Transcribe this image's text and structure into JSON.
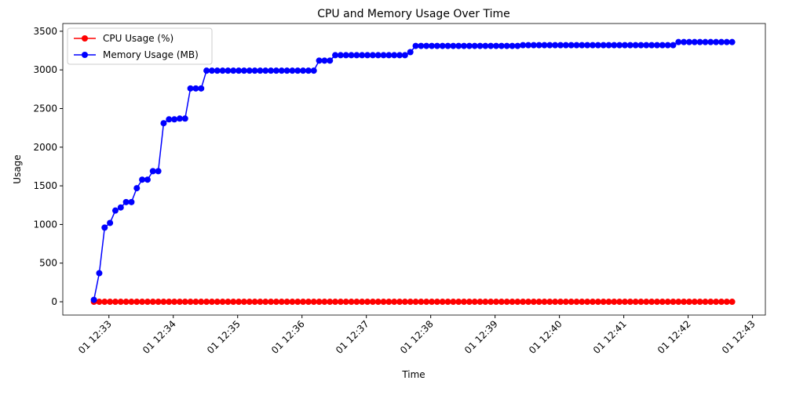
{
  "chart_data": {
    "type": "line",
    "title": "CPU and Memory Usage Over Time",
    "xlabel": "Time",
    "ylabel": "Usage",
    "x": [
      "01 12:32:46",
      "01 12:32:51",
      "01 12:32:56",
      "01 12:33:01",
      "01 12:33:06",
      "01 12:33:11",
      "01 12:33:16",
      "01 12:33:21",
      "01 12:33:26",
      "01 12:33:31",
      "01 12:33:36",
      "01 12:33:41",
      "01 12:33:46",
      "01 12:33:51",
      "01 12:33:56",
      "01 12:34:01",
      "01 12:34:06",
      "01 12:34:11",
      "01 12:34:16",
      "01 12:34:21",
      "01 12:34:26",
      "01 12:34:31",
      "01 12:34:36",
      "01 12:34:41",
      "01 12:34:46",
      "01 12:34:51",
      "01 12:34:56",
      "01 12:35:01",
      "01 12:35:06",
      "01 12:35:11",
      "01 12:35:16",
      "01 12:35:21",
      "01 12:35:26",
      "01 12:35:31",
      "01 12:35:36",
      "01 12:35:41",
      "01 12:35:46",
      "01 12:35:51",
      "01 12:35:56",
      "01 12:36:01",
      "01 12:36:06",
      "01 12:36:11",
      "01 12:36:16",
      "01 12:36:21",
      "01 12:36:26",
      "01 12:36:31",
      "01 12:36:36",
      "01 12:36:41",
      "01 12:36:46",
      "01 12:36:51",
      "01 12:36:56",
      "01 12:37:01",
      "01 12:37:06",
      "01 12:37:11",
      "01 12:37:16",
      "01 12:37:21",
      "01 12:37:26",
      "01 12:37:31",
      "01 12:37:36",
      "01 12:37:41",
      "01 12:37:46",
      "01 12:37:51",
      "01 12:37:56",
      "01 12:38:01",
      "01 12:38:06",
      "01 12:38:11",
      "01 12:38:16",
      "01 12:38:21",
      "01 12:38:26",
      "01 12:38:31",
      "01 12:38:36",
      "01 12:38:41",
      "01 12:38:46",
      "01 12:38:51",
      "01 12:38:56",
      "01 12:39:01",
      "01 12:39:06",
      "01 12:39:11",
      "01 12:39:16",
      "01 12:39:21",
      "01 12:39:26",
      "01 12:39:31",
      "01 12:39:36",
      "01 12:39:41",
      "01 12:39:46",
      "01 12:39:51",
      "01 12:39:56",
      "01 12:40:01",
      "01 12:40:06",
      "01 12:40:11",
      "01 12:40:16",
      "01 12:40:21",
      "01 12:40:26",
      "01 12:40:31",
      "01 12:40:36",
      "01 12:40:41",
      "01 12:40:46",
      "01 12:40:51",
      "01 12:40:56",
      "01 12:41:01",
      "01 12:41:06",
      "01 12:41:11",
      "01 12:41:16",
      "01 12:41:21",
      "01 12:41:26",
      "01 12:41:31",
      "01 12:41:36",
      "01 12:41:41",
      "01 12:41:46",
      "01 12:41:51",
      "01 12:41:56",
      "01 12:42:01",
      "01 12:42:06",
      "01 12:42:11",
      "01 12:42:16",
      "01 12:42:21",
      "01 12:42:26",
      "01 12:42:31",
      "01 12:42:36",
      "01 12:42:41"
    ],
    "series": [
      {
        "name": "CPU Usage (%)",
        "color": "#ff0000",
        "values": [
          0,
          0,
          0,
          0,
          0,
          0,
          0,
          0,
          0,
          0,
          0,
          0,
          0,
          0,
          0,
          0,
          0,
          0,
          0,
          0,
          0,
          0,
          0,
          0,
          0,
          0,
          0,
          0,
          0,
          0,
          0,
          0,
          0,
          0,
          0,
          0,
          0,
          0,
          0,
          0,
          0,
          0,
          0,
          0,
          0,
          0,
          0,
          0,
          0,
          0,
          0,
          0,
          0,
          0,
          0,
          0,
          0,
          0,
          0,
          0,
          0,
          0,
          0,
          0,
          0,
          0,
          0,
          0,
          0,
          0,
          0,
          0,
          0,
          0,
          0,
          0,
          0,
          0,
          0,
          0,
          0,
          0,
          0,
          0,
          0,
          0,
          0,
          0,
          0,
          0,
          0,
          0,
          0,
          0,
          0,
          0,
          0,
          0,
          0,
          0,
          0,
          0,
          0,
          0,
          0,
          0,
          0,
          0,
          0,
          0,
          0,
          0,
          0,
          0,
          0,
          0,
          0,
          0,
          0,
          0
        ]
      },
      {
        "name": "Memory Usage (MB)",
        "color": "#0000ff",
        "values": [
          25,
          370,
          960,
          1020,
          1180,
          1220,
          1290,
          1290,
          1470,
          1580,
          1580,
          1690,
          1690,
          2310,
          2360,
          2360,
          2370,
          2370,
          2760,
          2760,
          2760,
          2990,
          2990,
          2990,
          2990,
          2990,
          2990,
          2990,
          2990,
          2990,
          2990,
          2990,
          2990,
          2990,
          2990,
          2990,
          2990,
          2990,
          2990,
          2990,
          2990,
          2990,
          3120,
          3120,
          3120,
          3190,
          3190,
          3190,
          3190,
          3190,
          3190,
          3190,
          3190,
          3190,
          3190,
          3190,
          3190,
          3190,
          3190,
          3230,
          3310,
          3310,
          3310,
          3310,
          3310,
          3310,
          3310,
          3310,
          3310,
          3310,
          3310,
          3310,
          3310,
          3310,
          3310,
          3310,
          3310,
          3310,
          3310,
          3310,
          3320,
          3320,
          3320,
          3320,
          3320,
          3320,
          3320,
          3320,
          3320,
          3320,
          3320,
          3320,
          3320,
          3320,
          3320,
          3320,
          3320,
          3320,
          3320,
          3320,
          3320,
          3320,
          3320,
          3320,
          3320,
          3320,
          3320,
          3320,
          3320,
          3360,
          3360,
          3360,
          3360,
          3360,
          3360,
          3360,
          3360,
          3360,
          3360,
          3360
        ]
      }
    ],
    "xlim": [
      "01 12:32:17",
      "01 12:43:12"
    ],
    "xticks": [
      {
        "value": "01 12:33:00",
        "label": "01 12:33"
      },
      {
        "value": "01 12:34:00",
        "label": "01 12:34"
      },
      {
        "value": "01 12:35:00",
        "label": "01 12:35"
      },
      {
        "value": "01 12:36:00",
        "label": "01 12:36"
      },
      {
        "value": "01 12:37:00",
        "label": "01 12:37"
      },
      {
        "value": "01 12:38:00",
        "label": "01 12:38"
      },
      {
        "value": "01 12:39:00",
        "label": "01 12:39"
      },
      {
        "value": "01 12:40:00",
        "label": "01 12:40"
      },
      {
        "value": "01 12:41:00",
        "label": "01 12:41"
      },
      {
        "value": "01 12:42:00",
        "label": "01 12:42"
      },
      {
        "value": "01 12:43:00",
        "label": "01 12:43"
      }
    ],
    "ylim": [
      -172,
      3600
    ],
    "yticks": [
      0,
      500,
      1000,
      1500,
      2000,
      2500,
      3000,
      3500
    ],
    "legend": "upper left",
    "grid": false
  }
}
